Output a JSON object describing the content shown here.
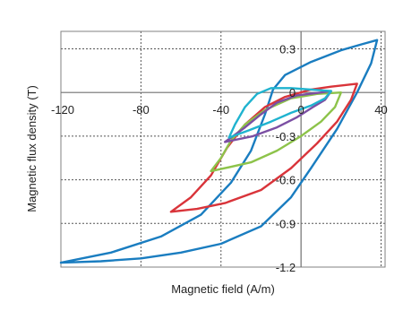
{
  "chart_data": {
    "type": "line",
    "title": "",
    "xlabel": "Magnetic field (A/m)",
    "ylabel": "Magnetic flux density (T)",
    "xlim": [
      -120,
      42
    ],
    "ylim": [
      -1.2,
      0.42
    ],
    "x_ticks": [
      -120,
      -80,
      -40,
      0,
      40
    ],
    "x_tick_labels": [
      "-120",
      "-80",
      "-40",
      "0",
      "40"
    ],
    "y_ticks": [
      0.3,
      0,
      -0.3,
      -0.6,
      -0.9,
      -1.2
    ],
    "y_tick_labels": [
      "0.3",
      "0",
      "-0.3",
      "-0.6",
      "-0.9",
      "-1.2"
    ],
    "grid": true,
    "grid_style": "dotted",
    "legend": "none",
    "series": [
      {
        "color": "#1a7dc0",
        "points": [
          [
            -120,
            -1.17
          ],
          [
            -95,
            -1.1
          ],
          [
            -70,
            -0.99
          ],
          [
            -50,
            -0.84
          ],
          [
            -35,
            -0.62
          ],
          [
            -25,
            -0.4
          ],
          [
            -18,
            -0.15
          ],
          [
            -14,
            0.02
          ],
          [
            -8,
            0.12
          ],
          [
            5,
            0.21
          ],
          [
            20,
            0.29
          ],
          [
            30,
            0.33
          ],
          [
            38,
            0.36
          ],
          [
            35,
            0.2
          ],
          [
            28,
            0.0
          ],
          [
            18,
            -0.25
          ],
          [
            5,
            -0.52
          ],
          [
            -5,
            -0.72
          ],
          [
            -20,
            -0.92
          ],
          [
            -40,
            -1.04
          ],
          [
            -60,
            -1.1
          ],
          [
            -80,
            -1.14
          ],
          [
            -100,
            -1.16
          ],
          [
            -120,
            -1.17
          ]
        ]
      },
      {
        "color": "#d9343a",
        "points": [
          [
            -65,
            -0.82
          ],
          [
            -55,
            -0.72
          ],
          [
            -45,
            -0.57
          ],
          [
            -37,
            -0.38
          ],
          [
            -28,
            -0.22
          ],
          [
            -18,
            -0.1
          ],
          [
            -8,
            -0.03
          ],
          [
            5,
            0.02
          ],
          [
            15,
            0.04
          ],
          [
            28,
            0.06
          ],
          [
            25,
            -0.05
          ],
          [
            18,
            -0.2
          ],
          [
            8,
            -0.35
          ],
          [
            -5,
            -0.52
          ],
          [
            -20,
            -0.67
          ],
          [
            -38,
            -0.76
          ],
          [
            -52,
            -0.8
          ],
          [
            -65,
            -0.82
          ]
        ]
      },
      {
        "color": "#8dc34a",
        "points": [
          [
            -45,
            -0.54
          ],
          [
            -40,
            -0.45
          ],
          [
            -35,
            -0.33
          ],
          [
            -28,
            -0.22
          ],
          [
            -18,
            -0.12
          ],
          [
            -5,
            -0.04
          ],
          [
            8,
            -0.01
          ],
          [
            20,
            0.0
          ],
          [
            17,
            -0.1
          ],
          [
            10,
            -0.2
          ],
          [
            0,
            -0.3
          ],
          [
            -12,
            -0.4
          ],
          [
            -25,
            -0.48
          ],
          [
            -38,
            -0.52
          ],
          [
            -45,
            -0.54
          ]
        ]
      },
      {
        "color": "#7b4fa3",
        "points": [
          [
            -38,
            -0.34
          ],
          [
            -34,
            -0.3
          ],
          [
            -28,
            -0.24
          ],
          [
            -20,
            -0.15
          ],
          [
            -12,
            -0.07
          ],
          [
            -2,
            -0.02
          ],
          [
            10,
            0.0
          ],
          [
            15,
            0.01
          ],
          [
            12,
            -0.05
          ],
          [
            6,
            -0.1
          ],
          [
            -2,
            -0.17
          ],
          [
            -12,
            -0.24
          ],
          [
            -24,
            -0.3
          ],
          [
            -38,
            -0.34
          ]
        ]
      },
      {
        "color": "#1fb3cf",
        "points": [
          [
            -36,
            -0.31
          ],
          [
            -33,
            -0.22
          ],
          [
            -28,
            -0.1
          ],
          [
            -22,
            -0.01
          ],
          [
            -15,
            0.03
          ],
          [
            -5,
            0.03
          ],
          [
            5,
            0.02
          ],
          [
            15,
            0.01
          ],
          [
            12,
            -0.04
          ],
          [
            5,
            -0.09
          ],
          [
            -5,
            -0.14
          ],
          [
            -15,
            -0.2
          ],
          [
            -26,
            -0.26
          ],
          [
            -36,
            -0.31
          ]
        ]
      }
    ]
  }
}
